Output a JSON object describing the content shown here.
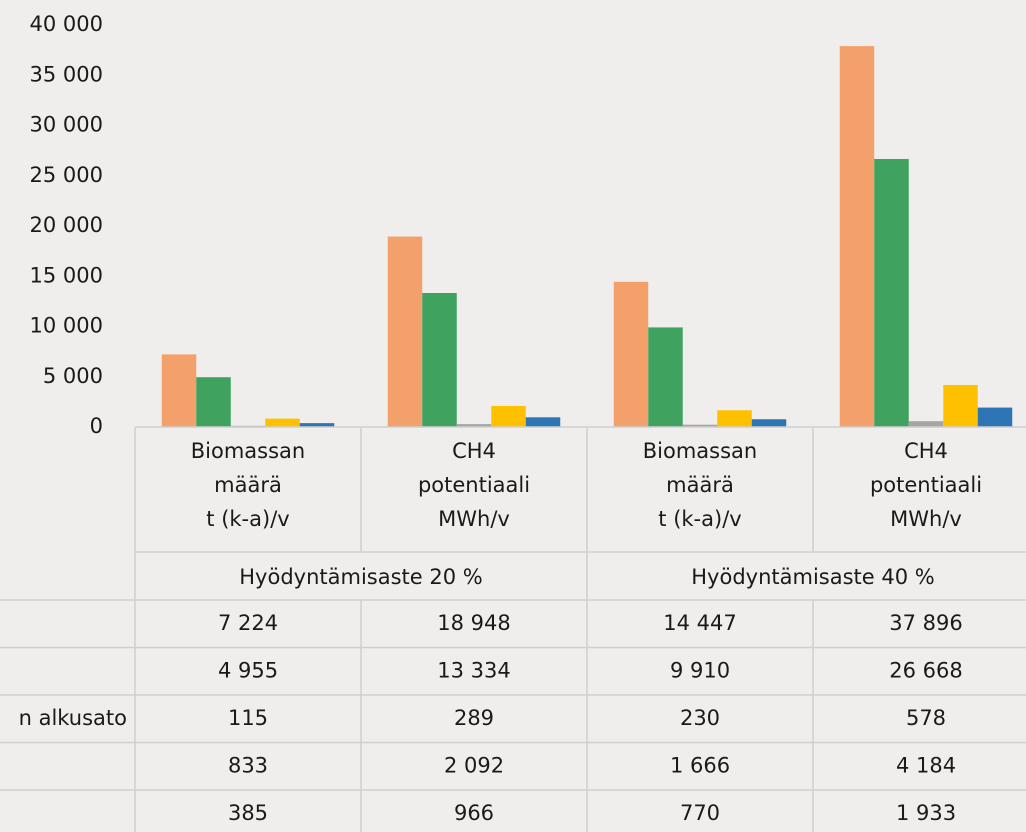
{
  "chart_data": {
    "type": "bar",
    "categories": [
      [
        "Biomassan",
        "määrä",
        "t (k-a)/v"
      ],
      [
        "CH4",
        "potentiaali",
        "MWh/v"
      ],
      [
        "Biomassan",
        "määrä",
        "t (k-a)/v"
      ],
      [
        "CH4",
        "potentiaali",
        "MWh/v"
      ]
    ],
    "groups": [
      "Hyödyntämisaste 20 %",
      "Hyödyntämisaste 40 %"
    ],
    "series": [
      {
        "name": null,
        "color": "#f4a06a",
        "values": [
          7224,
          18948,
          14447,
          37896
        ],
        "value_labels": [
          "7 224",
          "18 948",
          "14 447",
          "37 896"
        ]
      },
      {
        "name": null,
        "color": "#3fa35f",
        "values": [
          4955,
          13334,
          9910,
          26668
        ],
        "value_labels": [
          "4 955",
          "13 334",
          "9 910",
          "26 668"
        ]
      },
      {
        "name": "n alkusato",
        "color": "#a5a5a5",
        "values": [
          115,
          289,
          230,
          578
        ]
      },
      {
        "name": null,
        "color": "#ffc000",
        "values": [
          833,
          2092,
          1666,
          4184
        ],
        "value_labels": [
          "833",
          "2 092",
          "1 666",
          "4 184"
        ]
      },
      {
        "name": null,
        "color": "#2e75b6",
        "values": [
          385,
          966,
          770,
          1933
        ],
        "value_labels": [
          "385",
          "966",
          "770",
          "1 933"
        ]
      }
    ],
    "ylim": [
      0,
      40000
    ],
    "yticks": [
      0,
      {
        "value": 5000,
        "label": "5 000"
      },
      {
        "value": 10000,
        "label": "10 000"
      },
      {
        "value": 15000,
        "label": "15 000"
      },
      {
        "value": 20000,
        "label": "20 000"
      },
      {
        "value": 25000,
        "label": "25 000"
      },
      {
        "value": 30000,
        "label": "30 000"
      },
      {
        "value": 35000,
        "label": "35 000"
      },
      {
        "value": 40000,
        "label": "40 000"
      }
    ],
    "grid": false
  }
}
